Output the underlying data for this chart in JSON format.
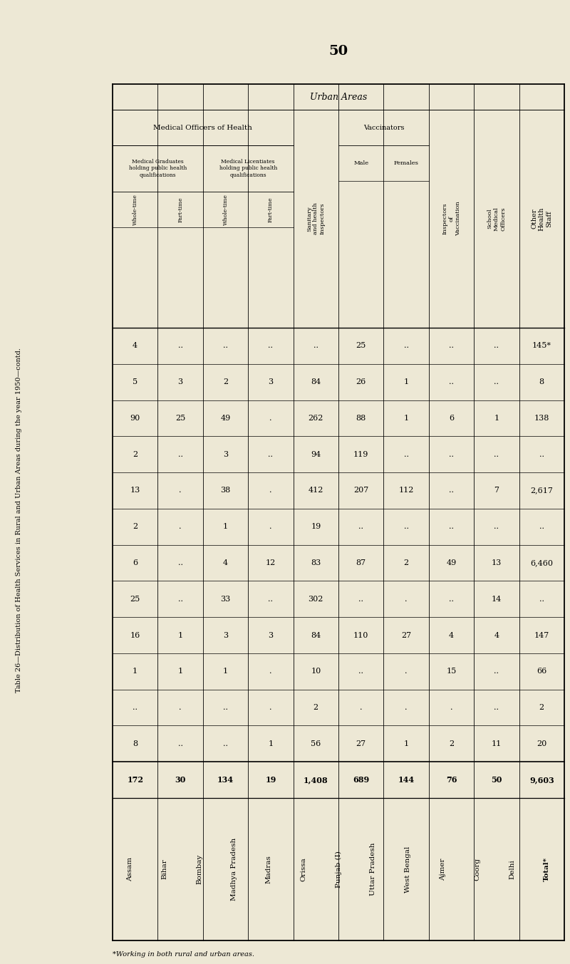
{
  "title": "Table 26—Distribution of Health Services in Rural and Urban Areas during the year 1950—contd.",
  "page_number": "50",
  "background_color": "#ede8d5",
  "footnote": "*Working in both rural and urban areas.",
  "rows": [
    {
      "state": "Assam",
      "mg_wt": "4",
      "mg_pt": "..",
      "ml_wt": "..",
      "ml_pt": "..",
      "sanitary": "..",
      "vacc_male": "25",
      "vacc_fem": "..",
      "insp_vacc": "..",
      "school_mo": "..",
      "other_hs": "145*"
    },
    {
      "state": "Bihar",
      "mg_wt": "5",
      "mg_pt": "3",
      "ml_wt": "2",
      "ml_pt": "3",
      "sanitary": "84",
      "vacc_male": "26",
      "vacc_fem": "1",
      "insp_vacc": "..",
      "school_mo": "..",
      "other_hs": "8"
    },
    {
      "state": "Bombay",
      "mg_wt": "90",
      "mg_pt": "25",
      "ml_wt": "49",
      "ml_pt": ".",
      "sanitary": "262",
      "vacc_male": "88",
      "vacc_fem": "1",
      "insp_vacc": "6",
      "school_mo": "1",
      "other_hs": "138"
    },
    {
      "state": "Madhya Pradesh",
      "mg_wt": "2",
      "mg_pt": "..",
      "ml_wt": "3",
      "ml_pt": "..",
      "sanitary": "94",
      "vacc_male": "119",
      "vacc_fem": "..",
      "insp_vacc": "..",
      "school_mo": "..",
      "other_hs": ".."
    },
    {
      "state": "Madras",
      "mg_wt": "13",
      "mg_pt": ".",
      "ml_wt": "38",
      "ml_pt": ".",
      "sanitary": "412",
      "vacc_male": "207",
      "vacc_fem": "112",
      "insp_vacc": "..",
      "school_mo": "7",
      "other_hs": "2,617"
    },
    {
      "state": "Orissa",
      "mg_wt": "2",
      "mg_pt": ".",
      "ml_wt": "1",
      "ml_pt": ".",
      "sanitary": "19",
      "vacc_male": "..",
      "vacc_fem": "..",
      "insp_vacc": "..",
      "school_mo": "..",
      "other_hs": ".."
    },
    {
      "state": "Punjab (I)",
      "mg_wt": "6",
      "mg_pt": "..",
      "ml_wt": "4",
      "ml_pt": "12",
      "sanitary": "83",
      "vacc_male": "87",
      "vacc_fem": "2",
      "insp_vacc": "49",
      "school_mo": "13",
      "other_hs": "6,460"
    },
    {
      "state": "Uttar Pradesh",
      "mg_wt": "25",
      "mg_pt": "..",
      "ml_wt": "33",
      "ml_pt": "..",
      "sanitary": "302",
      "vacc_male": "..",
      "vacc_fem": ".",
      "insp_vacc": "..",
      "school_mo": "14",
      "other_hs": ".."
    },
    {
      "state": "West Bengal",
      "mg_wt": "16",
      "mg_pt": "1",
      "ml_wt": "3",
      "ml_pt": "3",
      "sanitary": "84",
      "vacc_male": "110",
      "vacc_fem": "27",
      "insp_vacc": "4",
      "school_mo": "4",
      "other_hs": "147"
    },
    {
      "state": "Ajmer",
      "mg_wt": "1",
      "mg_pt": "1",
      "ml_wt": "1",
      "ml_pt": ".",
      "sanitary": "10",
      "vacc_male": "..",
      "vacc_fem": ".",
      "insp_vacc": "15",
      "school_mo": "..",
      "other_hs": "66"
    },
    {
      "state": "Coorg",
      "mg_wt": "..",
      "mg_pt": ".",
      "ml_wt": "..",
      "ml_pt": ".",
      "sanitary": "2",
      "vacc_male": ".",
      "vacc_fem": ".",
      "insp_vacc": ".",
      "school_mo": "..",
      "other_hs": "2"
    },
    {
      "state": "Delhi",
      "mg_wt": "8",
      "mg_pt": "..",
      "ml_wt": "..",
      "ml_pt": "1",
      "sanitary": "56",
      "vacc_male": "27",
      "vacc_fem": "1",
      "insp_vacc": "2",
      "school_mo": "11",
      "other_hs": "20"
    },
    {
      "state": "Total*",
      "mg_wt": "172",
      "mg_pt": "30",
      "ml_wt": "134",
      "ml_pt": "19",
      "sanitary": "1,408",
      "vacc_male": "689",
      "vacc_fem": "144",
      "insp_vacc": "76",
      "school_mo": "50",
      "other_hs": "9,603"
    }
  ]
}
